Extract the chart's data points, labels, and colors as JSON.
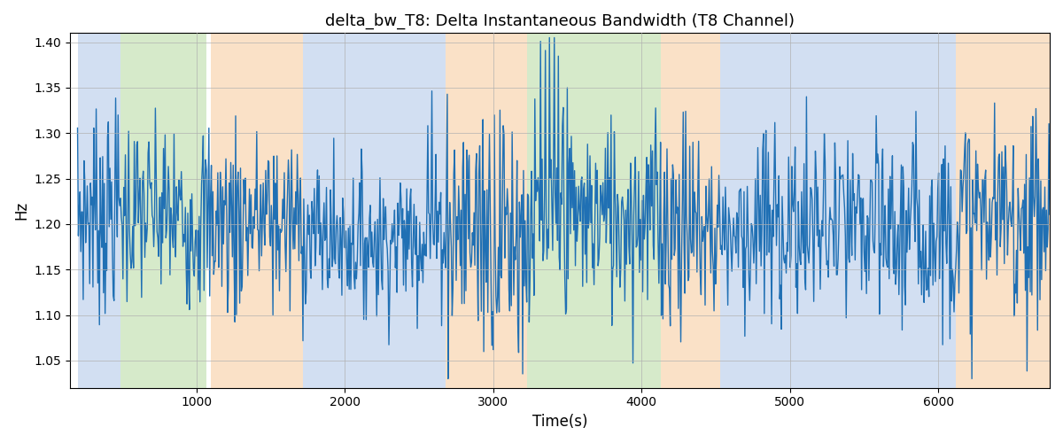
{
  "title": "delta_bw_T8: Delta Instantaneous Bandwidth (T8 Channel)",
  "xlabel": "Time(s)",
  "ylabel": "Hz",
  "ylim": [
    1.02,
    1.41
  ],
  "xlim": [
    150,
    6750
  ],
  "yticks": [
    1.05,
    1.1,
    1.15,
    1.2,
    1.25,
    1.3,
    1.35,
    1.4
  ],
  "xticks": [
    1000,
    2000,
    3000,
    4000,
    5000,
    6000
  ],
  "line_color": "#2070b4",
  "line_width": 1.0,
  "bg_bands": [
    {
      "xmin": 200,
      "xmax": 490,
      "color": "#aec6e8",
      "alpha": 0.55
    },
    {
      "xmin": 490,
      "xmax": 1070,
      "color": "#b5d9a0",
      "alpha": 0.55
    },
    {
      "xmin": 1100,
      "xmax": 1720,
      "color": "#f7c99a",
      "alpha": 0.55
    },
    {
      "xmin": 1720,
      "xmax": 2680,
      "color": "#aec6e8",
      "alpha": 0.55
    },
    {
      "xmin": 2680,
      "xmax": 3230,
      "color": "#f7c99a",
      "alpha": 0.55
    },
    {
      "xmin": 3230,
      "xmax": 4130,
      "color": "#b5d9a0",
      "alpha": 0.55
    },
    {
      "xmin": 4130,
      "xmax": 4530,
      "color": "#f7c99a",
      "alpha": 0.55
    },
    {
      "xmin": 4530,
      "xmax": 6120,
      "color": "#aec6e8",
      "alpha": 0.55
    },
    {
      "xmin": 6120,
      "xmax": 6750,
      "color": "#f7c99a",
      "alpha": 0.55
    }
  ],
  "title_fontsize": 13,
  "figsize": [
    12.0,
    5.0
  ],
  "dpi": 100,
  "total_time": 6750,
  "n_points": 1200,
  "base_mean": 1.2,
  "seed": 7
}
